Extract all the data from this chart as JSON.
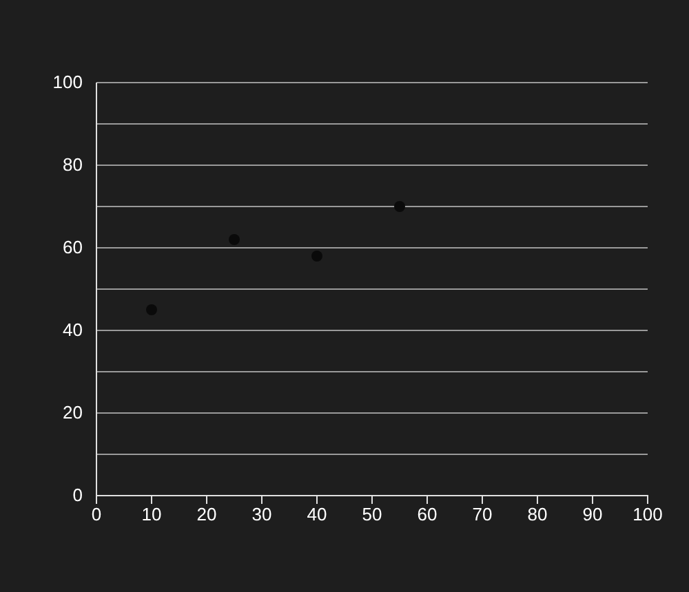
{
  "chart_data": {
    "type": "scatter",
    "x": [
      10,
      25,
      40,
      55
    ],
    "values": [
      45,
      62,
      58,
      70
    ],
    "color": "#0a0a0a",
    "marker": "circle",
    "grid": "y",
    "xlim": [
      0,
      100
    ],
    "xticks": [
      0,
      10,
      20,
      30,
      40,
      50,
      60,
      70,
      80,
      90,
      100
    ],
    "ylim": [
      0,
      100
    ],
    "yticks": [
      0,
      {
        "value": 10,
        "label": null
      },
      20,
      {
        "value": 30,
        "label": null
      },
      40,
      {
        "value": 50,
        "label": null
      },
      60,
      {
        "value": 70,
        "label": null
      },
      80,
      {
        "value": 90,
        "label": null
      },
      100
    ]
  }
}
